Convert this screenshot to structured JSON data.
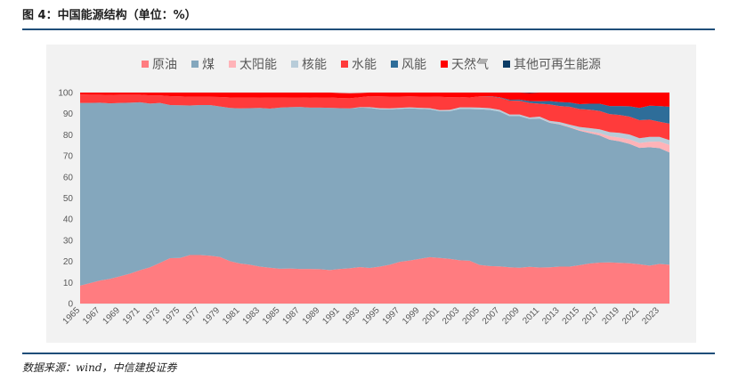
{
  "header": {
    "title": "图 4：中国能源结构（单位：%）"
  },
  "footer": {
    "source": "数据来源：wind，中信建投证券"
  },
  "chart_data": {
    "type": "area",
    "stacked": true,
    "title": "中国能源结构（单位：%）",
    "xlabel": "",
    "ylabel": "",
    "ylim": [
      0,
      100
    ],
    "yticks": [
      0,
      10,
      20,
      30,
      40,
      50,
      60,
      70,
      80,
      90,
      100
    ],
    "x": [
      1965,
      1966,
      1967,
      1968,
      1969,
      1970,
      1971,
      1972,
      1973,
      1974,
      1975,
      1976,
      1977,
      1978,
      1979,
      1980,
      1981,
      1982,
      1983,
      1984,
      1985,
      1986,
      1987,
      1988,
      1989,
      1990,
      1991,
      1992,
      1993,
      1994,
      1995,
      1996,
      1997,
      1998,
      1999,
      2000,
      2001,
      2002,
      2003,
      2004,
      2005,
      2006,
      2007,
      2008,
      2009,
      2010,
      2011,
      2012,
      2013,
      2014,
      2015,
      2016,
      2017,
      2018,
      2019,
      2020,
      2021,
      2022,
      2023,
      2024
    ],
    "xtick_labels": [
      "1965",
      "1967",
      "1969",
      "1971",
      "1973",
      "1975",
      "1977",
      "1979",
      "1981",
      "1983",
      "1985",
      "1987",
      "1989",
      "1991",
      "1993",
      "1995",
      "1997",
      "1999",
      "2001",
      "2003",
      "2005",
      "2007",
      "2009",
      "2011",
      "2013",
      "2015",
      "2017",
      "2019",
      "2021",
      "2023"
    ],
    "legend_position": "top",
    "series": [
      {
        "name": "原油",
        "color": "#ff7c80",
        "values": [
          8.5,
          9.7,
          10.9,
          11.7,
          12.9,
          14.2,
          15.8,
          17.2,
          19.3,
          21.5,
          21.6,
          23.0,
          23.0,
          22.7,
          22.1,
          20.1,
          19.0,
          18.4,
          17.5,
          17.0,
          16.5,
          16.6,
          16.4,
          16.4,
          16.3,
          15.9,
          16.4,
          16.7,
          17.3,
          16.9,
          17.5,
          18.4,
          19.8,
          20.4,
          21.2,
          22.0,
          21.6,
          21.2,
          20.5,
          20.3,
          18.3,
          17.8,
          17.6,
          17.2,
          17.0,
          17.4,
          17.1,
          17.2,
          17.5,
          17.5,
          18.2,
          19.0,
          19.4,
          19.5,
          19.3,
          19.1,
          18.6,
          18.0,
          18.8,
          18.4
        ]
      },
      {
        "name": "煤",
        "color": "#84a7bd",
        "values": [
          86.6,
          85.4,
          84.3,
          83.2,
          82.2,
          81.0,
          79.6,
          77.6,
          75.8,
          72.6,
          72.4,
          70.9,
          71.1,
          71.4,
          71.3,
          72.6,
          73.5,
          74.2,
          75.2,
          75.4,
          76.4,
          76.5,
          76.8,
          76.5,
          76.6,
          76.9,
          76.2,
          75.8,
          75.6,
          75.8,
          74.6,
          73.6,
          72.5,
          72.1,
          71.1,
          70.1,
          69.6,
          70.0,
          71.7,
          71.9,
          73.8,
          74.0,
          73.4,
          71.6,
          71.8,
          70.1,
          70.6,
          68.5,
          67.4,
          66.0,
          63.7,
          61.8,
          60.3,
          58.2,
          57.6,
          56.6,
          55.2,
          56.1,
          54.9,
          53.2
        ]
      },
      {
        "name": "太阳能",
        "color": "#ffb3b8",
        "values": [
          0,
          0,
          0,
          0,
          0,
          0,
          0,
          0,
          0,
          0,
          0,
          0,
          0,
          0,
          0,
          0,
          0,
          0,
          0,
          0,
          0,
          0,
          0,
          0,
          0,
          0,
          0,
          0,
          0,
          0,
          0,
          0,
          0,
          0,
          0,
          0,
          0,
          0,
          0,
          0,
          0,
          0,
          0,
          0,
          0,
          0,
          0.1,
          0.1,
          0.2,
          0.3,
          0.5,
          0.8,
          1.1,
          1.6,
          1.8,
          2.1,
          2.3,
          2.6,
          3.1,
          3.6
        ]
      },
      {
        "name": "核能",
        "color": "#b8ccd9",
        "values": [
          0,
          0,
          0,
          0,
          0,
          0,
          0,
          0,
          0,
          0,
          0,
          0,
          0,
          0,
          0,
          0,
          0,
          0,
          0,
          0,
          0,
          0,
          0,
          0,
          0,
          0,
          0,
          0,
          0.2,
          0.4,
          0.5,
          0.5,
          0.5,
          0.5,
          0.5,
          0.5,
          0.5,
          0.6,
          0.8,
          0.8,
          0.8,
          0.8,
          0.8,
          0.8,
          0.8,
          0.7,
          0.8,
          0.8,
          0.9,
          1.0,
          1.3,
          1.6,
          1.8,
          2.0,
          2.2,
          2.3,
          2.3,
          2.3,
          2.2,
          2.3
        ]
      },
      {
        "name": "水能",
        "color": "#ff3b3b",
        "values": [
          4.0,
          3.9,
          3.8,
          4.0,
          3.9,
          3.8,
          3.6,
          3.9,
          3.6,
          4.2,
          4.2,
          4.1,
          3.9,
          3.9,
          4.5,
          5.0,
          5.1,
          5.0,
          5.0,
          5.2,
          4.7,
          4.6,
          4.5,
          4.6,
          4.8,
          4.9,
          4.8,
          4.8,
          4.7,
          5.2,
          5.6,
          5.6,
          5.3,
          5.2,
          5.3,
          5.5,
          6.3,
          6.0,
          4.9,
          4.7,
          5.3,
          5.6,
          5.8,
          6.6,
          6.5,
          6.9,
          6.1,
          7.8,
          7.6,
          8.5,
          8.5,
          8.7,
          8.7,
          8.5,
          8.5,
          8.5,
          8.5,
          8.2,
          7.2,
          7.8
        ]
      },
      {
        "name": "风能",
        "color": "#2e6d99",
        "values": [
          0,
          0,
          0,
          0,
          0,
          0,
          0,
          0,
          0,
          0,
          0,
          0,
          0,
          0,
          0,
          0,
          0,
          0,
          0,
          0,
          0,
          0,
          0,
          0,
          0,
          0,
          0,
          0,
          0,
          0,
          0,
          0,
          0,
          0,
          0,
          0,
          0,
          0,
          0,
          0,
          0,
          0.1,
          0.2,
          0.4,
          0.6,
          0.9,
          1.2,
          1.6,
          1.9,
          2.0,
          2.3,
          2.8,
          3.4,
          3.8,
          4.2,
          4.9,
          5.8,
          6.6,
          7.4,
          8.0
        ]
      },
      {
        "name": "天然气",
        "color": "#ff0000",
        "values": [
          0.9,
          1.0,
          1.0,
          1.1,
          1.0,
          1.0,
          1.0,
          1.3,
          1.3,
          1.7,
          1.8,
          2.0,
          2.0,
          2.0,
          2.1,
          2.3,
          2.4,
          2.4,
          2.3,
          2.4,
          2.4,
          2.3,
          2.3,
          2.5,
          2.3,
          2.3,
          2.4,
          2.4,
          2.0,
          1.7,
          1.8,
          1.9,
          1.9,
          1.8,
          1.9,
          1.9,
          2.0,
          2.2,
          2.1,
          2.3,
          2.5,
          2.9,
          3.3,
          3.5,
          3.4,
          3.8,
          4.5,
          4.7,
          5.1,
          5.4,
          5.6,
          5.9,
          6.4,
          7.3,
          7.6,
          7.8,
          8.6,
          8.4,
          8.6,
          8.2
        ]
      },
      {
        "name": "其他可再生能源",
        "color": "#0b3c66",
        "values": [
          0,
          0,
          0,
          0,
          0,
          0,
          0,
          0,
          0,
          0,
          0,
          0,
          0,
          0,
          0,
          0,
          0,
          0,
          0,
          0,
          0,
          0,
          0,
          0,
          0,
          0,
          0,
          0,
          0,
          0,
          0,
          0,
          0,
          0,
          0,
          0,
          0,
          0,
          0,
          0,
          0.1,
          0.1,
          0.2,
          0.3,
          0.4,
          0.5,
          0.5,
          0.6,
          0.6,
          0.6,
          0.6,
          0.6,
          0.6,
          0.7,
          0.7,
          0.7,
          0.7,
          0.8,
          0.8,
          0.9
        ]
      }
    ]
  }
}
